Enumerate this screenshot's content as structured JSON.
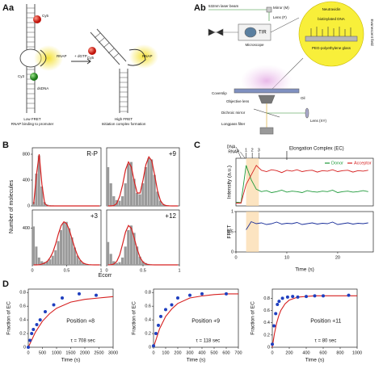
{
  "panel_labels": {
    "aa": "Aa",
    "ab": "Ab",
    "b": "B",
    "c": "C",
    "d": "D"
  },
  "diagram_aa": {
    "left": {
      "cy5": "Cy5",
      "rnap": "RNAP",
      "cy3": "Cy3",
      "dsdna": "dsDNA",
      "state": "Low FRET",
      "caption": "RNAP binding to promoter"
    },
    "arrow": "+ dGTP",
    "right": {
      "cy5": "Cy5",
      "rnap": "RNAP",
      "state": "High FRET",
      "caption": "Initiation complex formation"
    }
  },
  "diagram_ab": {
    "laser": "532nm laser beam",
    "mirror": "Mirror (M)",
    "lens_f": "Lens (F)",
    "tir": "TIR",
    "microscope": "Microscope",
    "coverslip": "Coverslip",
    "oil": "Oil",
    "objective": "Objective lens",
    "dichroic": "Dichroic mirror",
    "longpass": "Longpass filter",
    "lens_xy": "Lens (XY)",
    "inset": {
      "a": "Neutravidin",
      "b": "biotinylated DNA",
      "c": "PEG-polyethylene glass",
      "side": "Evanescent field"
    }
  },
  "histogram_axes": {
    "ylabel": "Number of molecules",
    "xlabel": "Ecorr"
  },
  "chart_data": [
    {
      "type": "histogram",
      "label": "R-P",
      "xlim": [
        0,
        1
      ],
      "ylim": [
        0,
        900
      ],
      "yticks": [
        0,
        400,
        800
      ],
      "bins": [
        0,
        0.04,
        0.08,
        0.12,
        0.16,
        0.2,
        0.24,
        0.28,
        0.32,
        0.36,
        0.4,
        0.44,
        0.48,
        0.52,
        0.56,
        0.6,
        0.64,
        0.68,
        0.72,
        0.76,
        0.8,
        0.84,
        0.88,
        0.92,
        0.96,
        1
      ],
      "counts": [
        60,
        500,
        780,
        300,
        60,
        20,
        10,
        8,
        5,
        5,
        4,
        4,
        3,
        3,
        3,
        2,
        2,
        2,
        2,
        2,
        1,
        1,
        1,
        1,
        1
      ],
      "color": "#9a9a9a",
      "fit": {
        "color": "#d62020",
        "x": [
          0.02,
          0.06,
          0.1,
          0.14,
          0.18,
          0.22,
          0.26,
          0.3,
          0.34,
          0.38,
          0.42,
          0.46,
          0.5,
          0.54,
          0.58,
          0.62,
          0.66,
          0.7,
          0.74,
          0.78,
          0.82,
          0.86,
          0.9,
          0.94,
          0.98
        ],
        "values": [
          30,
          480,
          800,
          330,
          40,
          3,
          0,
          0,
          0,
          0,
          0,
          0,
          0,
          0,
          0,
          0,
          0,
          0,
          0,
          0,
          0,
          0,
          0,
          0,
          0
        ]
      }
    },
    {
      "type": "histogram",
      "label": "+9",
      "xlim": [
        0,
        1
      ],
      "ylim": [
        0,
        900
      ],
      "bins": [
        0,
        0.04,
        0.08,
        0.12,
        0.16,
        0.2,
        0.24,
        0.28,
        0.32,
        0.36,
        0.4,
        0.44,
        0.48,
        0.52,
        0.56,
        0.6,
        0.64,
        0.68,
        0.72,
        0.76,
        0.8,
        0.84,
        0.88,
        0.92,
        0.96,
        1
      ],
      "counts": [
        600,
        350,
        150,
        90,
        80,
        150,
        350,
        650,
        680,
        420,
        200,
        180,
        350,
        600,
        740,
        720,
        480,
        220,
        80,
        30,
        10,
        5,
        3,
        2,
        1
      ],
      "color": "#9a9a9a",
      "fit": {
        "color": "#d62020",
        "x": [
          0.02,
          0.06,
          0.1,
          0.14,
          0.18,
          0.22,
          0.26,
          0.3,
          0.34,
          0.38,
          0.42,
          0.46,
          0.5,
          0.54,
          0.58,
          0.62,
          0.66,
          0.7,
          0.74,
          0.78,
          0.82,
          0.86,
          0.9,
          0.94,
          0.98
        ],
        "values": [
          0,
          0,
          5,
          40,
          150,
          330,
          560,
          680,
          600,
          380,
          200,
          200,
          400,
          640,
          760,
          700,
          480,
          230,
          80,
          20,
          5,
          1,
          0,
          0,
          0
        ]
      }
    },
    {
      "type": "histogram",
      "label": "+3",
      "xlim": [
        0,
        1
      ],
      "ylim": [
        0,
        600
      ],
      "yticks": [
        400
      ],
      "xticks": [
        0,
        0.5,
        1
      ],
      "bins": [
        0,
        0.04,
        0.08,
        0.12,
        0.16,
        0.2,
        0.24,
        0.28,
        0.32,
        0.36,
        0.4,
        0.44,
        0.48,
        0.52,
        0.56,
        0.6,
        0.64,
        0.68,
        0.72,
        0.76,
        0.8,
        0.84,
        0.88,
        0.92,
        0.96,
        1
      ],
      "counts": [
        420,
        200,
        80,
        40,
        30,
        40,
        60,
        100,
        160,
        260,
        380,
        460,
        470,
        400,
        300,
        190,
        100,
        50,
        20,
        10,
        5,
        3,
        2,
        1,
        1
      ],
      "color": "#9a9a9a",
      "fit": {
        "color": "#d62020",
        "x": [
          0.02,
          0.06,
          0.1,
          0.14,
          0.18,
          0.22,
          0.26,
          0.3,
          0.34,
          0.38,
          0.42,
          0.46,
          0.5,
          0.54,
          0.58,
          0.62,
          0.66,
          0.7,
          0.74,
          0.78,
          0.82,
          0.86,
          0.9,
          0.94,
          0.98
        ],
        "values": [
          0,
          0,
          2,
          8,
          20,
          40,
          80,
          140,
          230,
          340,
          430,
          470,
          450,
          380,
          280,
          180,
          100,
          50,
          20,
          8,
          3,
          1,
          0,
          0,
          0
        ]
      }
    },
    {
      "type": "histogram",
      "label": "+12",
      "xlim": [
        0,
        1
      ],
      "ylim": [
        0,
        600
      ],
      "xticks": [
        0,
        0.5,
        1
      ],
      "bins": [
        0,
        0.04,
        0.08,
        0.12,
        0.16,
        0.2,
        0.24,
        0.28,
        0.32,
        0.36,
        0.4,
        0.44,
        0.48,
        0.52,
        0.56,
        0.6,
        0.64,
        0.68,
        0.72,
        0.76,
        0.8,
        0.84,
        0.88,
        0.92,
        0.96,
        1
      ],
      "counts": [
        250,
        120,
        40,
        20,
        30,
        80,
        200,
        380,
        430,
        350,
        200,
        90,
        40,
        20,
        10,
        5,
        3,
        2,
        1,
        1,
        1,
        0,
        0,
        0,
        0
      ],
      "color": "#9a9a9a",
      "fit": {
        "color": "#d62020",
        "x": [
          0.02,
          0.06,
          0.1,
          0.14,
          0.18,
          0.22,
          0.26,
          0.3,
          0.34,
          0.38,
          0.42,
          0.46,
          0.5,
          0.54,
          0.58,
          0.62,
          0.66,
          0.7,
          0.74,
          0.78,
          0.82,
          0.86,
          0.9,
          0.94,
          0.98
        ],
        "values": [
          0,
          2,
          10,
          40,
          110,
          230,
          360,
          430,
          400,
          290,
          170,
          80,
          30,
          10,
          3,
          1,
          0,
          0,
          0,
          0,
          0,
          0,
          0,
          0,
          0
        ]
      }
    },
    {
      "type": "line",
      "ylabel": "Intensity (a.u.)",
      "xlim": [
        0,
        27
      ],
      "ylim": [
        0,
        1
      ],
      "markers": [
        {
          "text": "DNA",
          "x": 1
        },
        {
          "text": "RNAP",
          "x": 1.8
        }
      ],
      "steps": [
        {
          "text": "1",
          "x": 2
        },
        {
          "text": "2",
          "x": 3.2
        },
        {
          "text": "3",
          "x": 4.5
        }
      ],
      "ec": {
        "text": "Elongation Complex (EC)",
        "x": 10
      },
      "x": [
        0,
        1,
        2,
        3,
        4,
        5,
        6,
        7,
        8,
        9,
        10,
        11,
        12,
        13,
        14,
        15,
        16,
        17,
        18,
        19,
        20,
        21,
        22,
        23,
        24,
        25,
        26
      ],
      "series": [
        {
          "name": "Donor",
          "color": "#1f9a3a",
          "values": [
            0.08,
            0.07,
            0.85,
            0.55,
            0.35,
            0.3,
            0.32,
            0.28,
            0.3,
            0.33,
            0.29,
            0.31,
            0.3,
            0.28,
            0.32,
            0.3,
            0.29,
            0.31,
            0.3,
            0.33,
            0.28,
            0.3,
            0.31,
            0.29,
            0.3,
            0.32,
            0.3
          ]
        },
        {
          "name": "Acceptor",
          "color": "#d62020",
          "values": [
            0.06,
            0.06,
            0.45,
            0.65,
            0.85,
            0.75,
            0.72,
            0.76,
            0.74,
            0.7,
            0.75,
            0.73,
            0.76,
            0.72,
            0.74,
            0.75,
            0.71,
            0.74,
            0.73,
            0.76,
            0.72,
            0.74,
            0.75,
            0.71,
            0.74,
            0.73,
            0.75
          ]
        }
      ]
    },
    {
      "type": "line",
      "ylabel": "FRET",
      "xlabel": "Time (s)",
      "xlim": [
        0,
        27
      ],
      "ylim": [
        0,
        1
      ],
      "yticks": [
        0,
        0.5,
        1
      ],
      "xticks": [
        0,
        10,
        20
      ],
      "x": [
        0,
        1,
        2,
        3,
        4,
        5,
        6,
        7,
        8,
        9,
        10,
        11,
        12,
        13,
        14,
        15,
        16,
        17,
        18,
        19,
        20,
        21,
        22,
        23,
        24,
        25,
        26
      ],
      "series": [
        {
          "color": "#1a2f9a",
          "values": [
            null,
            null,
            0.55,
            0.75,
            0.7,
            0.72,
            0.68,
            0.7,
            0.74,
            0.69,
            0.71,
            0.7,
            0.73,
            0.68,
            0.7,
            0.72,
            0.69,
            0.71,
            0.7,
            0.74,
            0.68,
            0.7,
            0.72,
            0.69,
            0.71,
            0.7,
            0.72
          ]
        }
      ]
    },
    {
      "type": "scatter",
      "ylabel": "Fraction of EC",
      "xlabel": "Time (s)",
      "label": "Position +8",
      "tau": "τ = 708 sec",
      "xlim": [
        0,
        3000
      ],
      "xticks": [
        0,
        500,
        1000,
        1500,
        2000,
        2500,
        3000
      ],
      "ylim": [
        0,
        0.85
      ],
      "yticks": [
        0,
        0.2,
        0.4,
        0.6,
        0.8
      ],
      "color": "#1f3fbf",
      "x": [
        0,
        60,
        120,
        180,
        300,
        420,
        600,
        900,
        1200,
        1800,
        2400
      ],
      "values": [
        0,
        0.1,
        0.2,
        0.26,
        0.33,
        0.4,
        0.52,
        0.62,
        0.72,
        0.78,
        0.76
      ],
      "fit": {
        "color": "#d62020",
        "x": [
          0,
          250,
          500,
          750,
          1000,
          1500,
          2000,
          2500,
          3000
        ],
        "values": [
          0,
          0.22,
          0.38,
          0.49,
          0.57,
          0.66,
          0.7,
          0.72,
          0.74
        ]
      }
    },
    {
      "type": "scatter",
      "ylabel": "Fraction of EC",
      "xlabel": "Time (s)",
      "label": "Position +9",
      "tau": "τ = 118 sec",
      "xlim": [
        0,
        700
      ],
      "xticks": [
        0,
        100,
        200,
        300,
        400,
        500,
        600,
        700
      ],
      "ylim": [
        0,
        0.85
      ],
      "yticks": [
        0,
        0.2,
        0.4,
        0.6,
        0.8
      ],
      "color": "#1f3fbf",
      "x": [
        0,
        20,
        40,
        60,
        100,
        150,
        200,
        300,
        400,
        600
      ],
      "values": [
        0.02,
        0.2,
        0.32,
        0.45,
        0.55,
        0.62,
        0.72,
        0.76,
        0.78,
        0.78
      ],
      "fit": {
        "color": "#d62020",
        "x": [
          0,
          50,
          100,
          150,
          200,
          300,
          400,
          500,
          600,
          700
        ],
        "values": [
          0,
          0.27,
          0.45,
          0.56,
          0.64,
          0.72,
          0.75,
          0.77,
          0.78,
          0.78
        ]
      }
    },
    {
      "type": "scatter",
      "ylabel": "Fraction of EC",
      "xlabel": "Time (s)",
      "label": "Position +11",
      "tau": "τ = 80 sec",
      "xlim": [
        0,
        1000
      ],
      "xticks": [
        0,
        200,
        400,
        600,
        800,
        1000
      ],
      "ylim": [
        0,
        0.95
      ],
      "yticks": [
        0,
        0.2,
        0.4,
        0.6,
        0.8
      ],
      "color": "#1f3fbf",
      "x": [
        0,
        20,
        40,
        60,
        80,
        120,
        180,
        240,
        300,
        400,
        500,
        600,
        900
      ],
      "values": [
        0.05,
        0.35,
        0.55,
        0.7,
        0.75,
        0.8,
        0.82,
        0.83,
        0.82,
        0.83,
        0.84,
        0.84,
        0.85
      ],
      "fit": {
        "color": "#d62020",
        "x": [
          0,
          25,
          50,
          75,
          100,
          150,
          200,
          300,
          500,
          1000
        ],
        "values": [
          0,
          0.22,
          0.39,
          0.51,
          0.6,
          0.71,
          0.77,
          0.82,
          0.84,
          0.84
        ]
      }
    }
  ]
}
